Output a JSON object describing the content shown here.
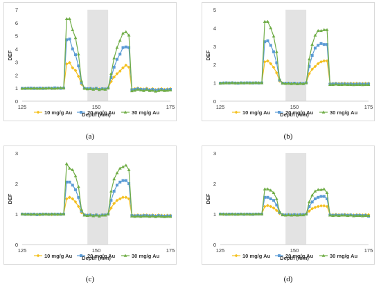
{
  "styles": {
    "colors": [
      "#f4c01e",
      "#5b9bd5",
      "#70ad47"
    ],
    "markers": [
      "diamond",
      "square",
      "triangle"
    ],
    "shade_color": "#e3e3e3",
    "grid": false,
    "legend_position": "bottom"
  },
  "chart_data": [
    {
      "type": "line",
      "caption": "(a)",
      "xlabel": "Depth (mm)",
      "ylabel": "DEF",
      "xlim": [
        125,
        175
      ],
      "ylim": [
        0,
        7
      ],
      "xticks": [
        "125",
        "150",
        "175"
      ],
      "yticks": [
        "0",
        "1",
        "2",
        "3",
        "4",
        "5",
        "6",
        "7"
      ],
      "shaded_region": [
        147,
        154
      ],
      "x": [
        125,
        126,
        127,
        128,
        129,
        130,
        131,
        132,
        133,
        134,
        135,
        136,
        137,
        138,
        139,
        140,
        141,
        142,
        143,
        144,
        145,
        146,
        147,
        148,
        149,
        150,
        151,
        152,
        153,
        154,
        155,
        156,
        157,
        158,
        159,
        160,
        161,
        162,
        163,
        164,
        165,
        166,
        167,
        168,
        169,
        170,
        171,
        172,
        173,
        174,
        175
      ],
      "series": [
        {
          "name": "10 mg/g Au",
          "values": [
            0.97,
            0.98,
            1.0,
            0.98,
            0.99,
            0.97,
            0.98,
            1.0,
            0.98,
            0.99,
            0.97,
            1.0,
            0.98,
            0.99,
            1.0,
            2.85,
            2.95,
            2.55,
            2.35,
            1.9,
            1.3,
            0.98,
            0.96,
            0.97,
            0.95,
            0.98,
            0.93,
            0.96,
            0.95,
            1.0,
            1.5,
            1.85,
            2.1,
            2.3,
            2.55,
            2.75,
            2.6,
            0.92,
            0.95,
            1.0,
            0.95,
            0.92,
            0.98,
            0.9,
            0.95,
            0.88,
            0.92,
            0.95,
            0.9,
            0.93,
            0.95
          ]
        },
        {
          "name": "20 mg/g Au",
          "values": [
            0.98,
            0.97,
            0.99,
            1.0,
            0.97,
            0.98,
            1.0,
            0.97,
            0.99,
            1.0,
            0.98,
            1.02,
            1.0,
            0.98,
            1.0,
            4.7,
            4.75,
            4.0,
            3.55,
            2.7,
            1.4,
            0.98,
            0.95,
            0.97,
            0.93,
            0.98,
            0.9,
            0.95,
            0.93,
            1.0,
            1.8,
            2.6,
            3.2,
            3.6,
            4.1,
            4.15,
            4.1,
            0.87,
            0.9,
            0.95,
            0.9,
            0.88,
            0.92,
            0.85,
            0.9,
            0.83,
            0.87,
            0.9,
            0.85,
            0.88,
            0.9
          ]
        },
        {
          "name": "30 mg/g Au",
          "values": [
            0.97,
            0.99,
            0.98,
            0.97,
            1.0,
            0.98,
            0.97,
            0.99,
            0.98,
            1.0,
            0.99,
            0.97,
            1.0,
            1.02,
            1.0,
            6.3,
            6.3,
            5.45,
            4.85,
            3.6,
            1.55,
            0.97,
            0.93,
            0.95,
            0.9,
            0.96,
            0.88,
            0.93,
            0.9,
            1.0,
            2.1,
            3.3,
            4.1,
            4.65,
            5.2,
            5.3,
            5.05,
            0.78,
            0.82,
            0.9,
            0.85,
            0.8,
            0.88,
            0.8,
            0.82,
            0.75,
            0.8,
            0.85,
            0.8,
            0.82,
            0.85
          ]
        }
      ]
    },
    {
      "type": "line",
      "caption": "(b)",
      "xlabel": "Depth (mm)",
      "ylabel": "DEF",
      "xlim": [
        125,
        175
      ],
      "ylim": [
        0,
        5
      ],
      "xticks": [
        "125",
        "150",
        "175"
      ],
      "yticks": [
        "0",
        "1",
        "2",
        "3",
        "4",
        "5"
      ],
      "shaded_region": [
        147,
        154
      ],
      "x": [
        125,
        126,
        127,
        128,
        129,
        130,
        131,
        132,
        133,
        134,
        135,
        136,
        137,
        138,
        139,
        140,
        141,
        142,
        143,
        144,
        145,
        146,
        147,
        148,
        149,
        150,
        151,
        152,
        153,
        154,
        155,
        156,
        157,
        158,
        159,
        160,
        161,
        162,
        163,
        164,
        165,
        166,
        167,
        168,
        169,
        170,
        171,
        172,
        173,
        174,
        175
      ],
      "series": [
        {
          "name": "10 mg/g Au",
          "values": [
            0.98,
            0.99,
            1.0,
            0.99,
            1.0,
            0.98,
            0.99,
            1.0,
            0.99,
            1.0,
            0.99,
            1.0,
            0.99,
            1.0,
            1.0,
            2.15,
            2.2,
            2.05,
            1.85,
            1.55,
            1.1,
            0.99,
            0.98,
            0.98,
            0.97,
            0.98,
            0.96,
            0.98,
            0.97,
            1.0,
            1.5,
            1.75,
            1.9,
            2.05,
            2.15,
            2.2,
            2.2,
            0.97,
            0.97,
            0.98,
            0.97,
            0.98,
            0.98,
            0.97,
            0.98,
            0.97,
            0.98,
            0.97,
            0.97,
            0.98,
            0.98
          ]
        },
        {
          "name": "20 mg/g Au",
          "values": [
            0.98,
            0.99,
            1.0,
            0.99,
            1.0,
            0.99,
            0.98,
            1.0,
            0.99,
            1.0,
            1.0,
            0.99,
            1.0,
            0.99,
            1.0,
            3.25,
            3.3,
            3.05,
            2.7,
            2.1,
            1.15,
            0.98,
            0.97,
            0.98,
            0.96,
            0.98,
            0.95,
            0.97,
            0.96,
            1.0,
            1.9,
            2.5,
            2.9,
            3.05,
            3.15,
            3.1,
            3.1,
            0.93,
            0.94,
            0.95,
            0.93,
            0.94,
            0.94,
            0.93,
            0.94,
            0.92,
            0.93,
            0.94,
            0.93,
            0.93,
            0.94
          ]
        },
        {
          "name": "30 mg/g Au",
          "values": [
            0.98,
            0.99,
            0.99,
            1.0,
            1.0,
            0.99,
            1.0,
            0.99,
            1.0,
            1.0,
            0.99,
            1.0,
            1.01,
            1.0,
            1.0,
            4.35,
            4.35,
            4.0,
            3.55,
            2.7,
            1.2,
            0.98,
            0.96,
            0.97,
            0.95,
            0.97,
            0.94,
            0.96,
            0.95,
            1.0,
            2.3,
            3.1,
            3.6,
            3.85,
            3.85,
            3.9,
            3.9,
            0.9,
            0.9,
            0.92,
            0.9,
            0.9,
            0.91,
            0.9,
            0.9,
            0.89,
            0.9,
            0.9,
            0.89,
            0.9,
            0.9
          ]
        }
      ]
    },
    {
      "type": "line",
      "caption": "(c)",
      "xlabel": "Depth (mm)",
      "ylabel": "DEF",
      "xlim": [
        125,
        175
      ],
      "ylim": [
        0,
        3
      ],
      "xticks": [
        "125",
        "150",
        "175"
      ],
      "yticks": [
        "0",
        "1",
        "2",
        "3"
      ],
      "shaded_region": [
        147,
        154
      ],
      "x": [
        125,
        126,
        127,
        128,
        129,
        130,
        131,
        132,
        133,
        134,
        135,
        136,
        137,
        138,
        139,
        140,
        141,
        142,
        143,
        144,
        145,
        146,
        147,
        148,
        149,
        150,
        151,
        152,
        153,
        154,
        155,
        156,
        157,
        158,
        159,
        160,
        161,
        162,
        163,
        164,
        165,
        166,
        167,
        168,
        169,
        170,
        171,
        172,
        173,
        174,
        175
      ],
      "series": [
        {
          "name": "10 mg/g Au",
          "values": [
            1.0,
            0.99,
            1.0,
            0.98,
            1.0,
            0.99,
            0.98,
            1.0,
            0.99,
            1.0,
            0.98,
            1.0,
            0.99,
            1.0,
            1.0,
            1.5,
            1.55,
            1.5,
            1.4,
            1.25,
            1.05,
            0.98,
            0.97,
            0.98,
            0.96,
            0.98,
            0.95,
            0.98,
            0.98,
            1.0,
            1.2,
            1.35,
            1.45,
            1.5,
            1.55,
            1.55,
            1.5,
            0.97,
            0.96,
            0.97,
            0.96,
            0.97,
            0.97,
            0.96,
            0.97,
            0.95,
            0.97,
            0.96,
            0.95,
            0.96,
            0.96
          ]
        },
        {
          "name": "20 mg/g Au",
          "values": [
            1.0,
            0.99,
            1.0,
            0.99,
            1.0,
            0.98,
            1.0,
            0.99,
            1.0,
            0.99,
            1.0,
            0.99,
            1.0,
            0.99,
            1.0,
            2.05,
            2.05,
            1.95,
            1.8,
            1.55,
            1.1,
            0.97,
            0.96,
            0.97,
            0.95,
            0.97,
            0.94,
            0.97,
            0.97,
            1.0,
            1.45,
            1.75,
            1.95,
            2.05,
            2.1,
            2.1,
            2.0,
            0.95,
            0.94,
            0.95,
            0.94,
            0.95,
            0.95,
            0.94,
            0.95,
            0.93,
            0.95,
            0.94,
            0.93,
            0.94,
            0.94
          ]
        },
        {
          "name": "30 mg/g Au",
          "values": [
            1.0,
            1.0,
            0.99,
            1.0,
            0.99,
            1.0,
            0.99,
            1.0,
            1.0,
            0.99,
            1.0,
            1.0,
            0.99,
            1.0,
            1.0,
            2.65,
            2.5,
            2.45,
            2.25,
            1.9,
            1.15,
            0.96,
            0.95,
            0.96,
            0.94,
            0.96,
            0.93,
            0.96,
            0.96,
            1.0,
            1.75,
            2.15,
            2.35,
            2.5,
            2.55,
            2.6,
            2.45,
            0.93,
            0.92,
            0.93,
            0.92,
            0.93,
            0.93,
            0.92,
            0.93,
            0.91,
            0.93,
            0.92,
            0.91,
            0.92,
            0.92
          ]
        }
      ]
    },
    {
      "type": "line",
      "caption": "(d)",
      "xlabel": "Depth (mm)",
      "ylabel": "DEF",
      "xlim": [
        125,
        175
      ],
      "ylim": [
        0,
        3
      ],
      "xticks": [
        "125",
        "150",
        "175"
      ],
      "yticks": [
        "0",
        "1",
        "2",
        "3"
      ],
      "shaded_region": [
        147,
        154
      ],
      "x": [
        125,
        126,
        127,
        128,
        129,
        130,
        131,
        132,
        133,
        134,
        135,
        136,
        137,
        138,
        139,
        140,
        141,
        142,
        143,
        144,
        145,
        146,
        147,
        148,
        149,
        150,
        151,
        152,
        153,
        154,
        155,
        156,
        157,
        158,
        159,
        160,
        161,
        162,
        163,
        164,
        165,
        166,
        167,
        168,
        169,
        170,
        171,
        172,
        173,
        174,
        175
      ],
      "series": [
        {
          "name": "10 mg/g Au",
          "values": [
            1.0,
            0.99,
            1.0,
            1.0,
            0.99,
            1.0,
            0.99,
            1.0,
            1.0,
            0.99,
            1.0,
            0.99,
            1.0,
            1.0,
            1.0,
            1.25,
            1.28,
            1.25,
            1.2,
            1.12,
            1.02,
            0.99,
            0.98,
            0.99,
            0.98,
            0.99,
            0.98,
            0.99,
            0.99,
            1.0,
            1.1,
            1.18,
            1.22,
            1.25,
            1.27,
            1.27,
            1.25,
            0.98,
            0.98,
            0.99,
            0.98,
            0.98,
            0.99,
            0.98,
            0.98,
            0.97,
            0.98,
            0.98,
            0.97,
            0.98,
            0.98
          ]
        },
        {
          "name": "20 mg/g Au",
          "values": [
            1.0,
            1.0,
            0.99,
            1.0,
            1.0,
            0.99,
            1.0,
            1.0,
            0.99,
            1.0,
            1.0,
            0.99,
            1.0,
            1.0,
            1.0,
            1.55,
            1.55,
            1.5,
            1.45,
            1.3,
            1.05,
            0.98,
            0.97,
            0.98,
            0.97,
            0.98,
            0.97,
            0.98,
            0.98,
            1.0,
            1.25,
            1.4,
            1.5,
            1.55,
            1.58,
            1.58,
            1.5,
            0.97,
            0.96,
            0.97,
            0.96,
            0.97,
            0.97,
            0.96,
            0.97,
            0.95,
            0.96,
            0.96,
            0.95,
            0.96,
            0.93
          ]
        },
        {
          "name": "30 mg/g Au",
          "values": [
            1.0,
            1.0,
            1.0,
            0.99,
            1.0,
            1.0,
            0.99,
            1.0,
            1.0,
            1.0,
            0.99,
            1.0,
            1.0,
            1.0,
            1.0,
            1.82,
            1.82,
            1.78,
            1.7,
            1.5,
            1.08,
            0.97,
            0.96,
            0.97,
            0.96,
            0.97,
            0.96,
            0.97,
            0.97,
            1.0,
            1.4,
            1.62,
            1.75,
            1.8,
            1.8,
            1.82,
            1.7,
            0.96,
            0.95,
            0.96,
            0.95,
            0.96,
            0.96,
            0.95,
            0.96,
            0.94,
            0.95,
            0.95,
            0.94,
            0.95,
            0.95
          ]
        }
      ]
    }
  ]
}
